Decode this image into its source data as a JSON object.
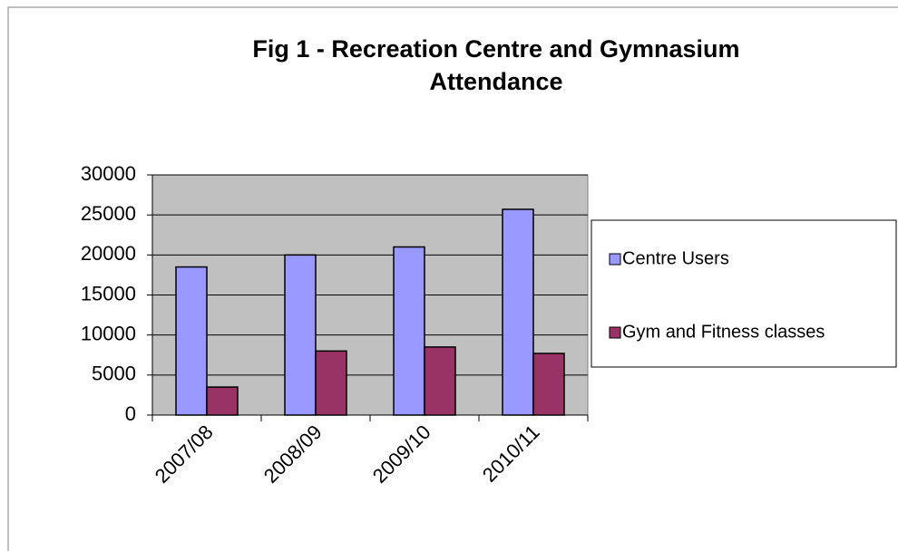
{
  "chart_data": {
    "type": "bar",
    "title": [
      "Fig 1 - Recreation Centre and Gymnasium",
      "Attendance"
    ],
    "categories": [
      "2007/08",
      "2008/09",
      "2009/10",
      "2010/11"
    ],
    "series": [
      {
        "name": "Centre Users",
        "color": "#9999ff",
        "values": [
          18500,
          20000,
          21000,
          25700
        ]
      },
      {
        "name": "Gym and Fitness classes",
        "color": "#993366",
        "values": [
          3500,
          8000,
          8500,
          7700
        ]
      }
    ],
    "ylim": [
      0,
      30000
    ],
    "yticks": [
      0,
      5000,
      10000,
      15000,
      20000,
      25000,
      30000
    ],
    "grid": true,
    "legend": "right"
  }
}
